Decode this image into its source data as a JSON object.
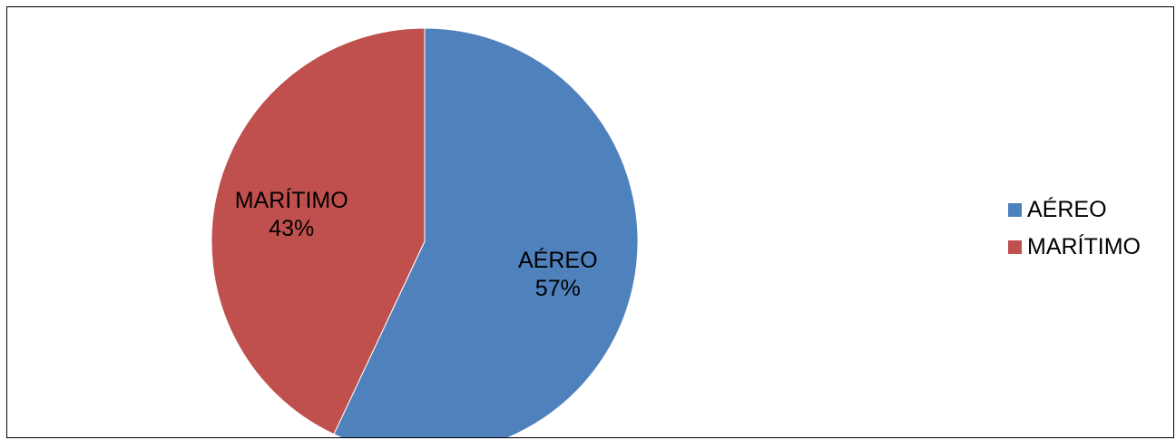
{
  "chart_data": {
    "type": "pie",
    "title": "",
    "slices": [
      {
        "label": "AÉREO",
        "value": 57,
        "value_label": "57%",
        "color": "#4F81BD"
      },
      {
        "label": "MARÍTIMO",
        "value": 43,
        "value_label": "43%",
        "color": "#C0504D"
      }
    ],
    "start_angle_deg": 0,
    "direction": "clockwise",
    "legend_position": "right"
  },
  "legend": {
    "items": [
      {
        "label": "AÉREO",
        "color": "#4F81BD"
      },
      {
        "label": "MARÍTIMO",
        "color": "#C0504D"
      }
    ]
  }
}
